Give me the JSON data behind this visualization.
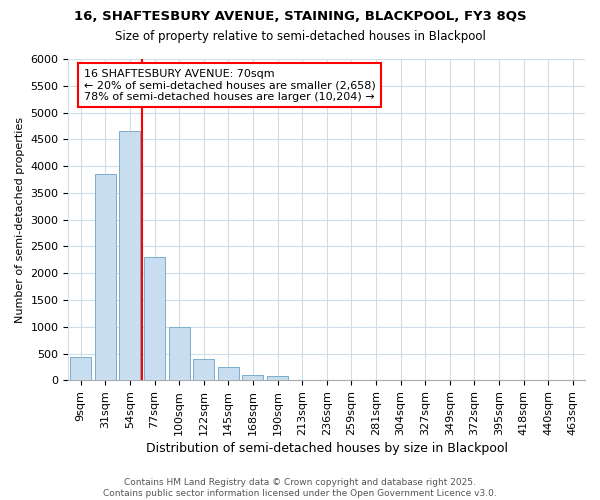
{
  "title1": "16, SHAFTESBURY AVENUE, STAINING, BLACKPOOL, FY3 8QS",
  "title2": "Size of property relative to semi-detached houses in Blackpool",
  "xlabel": "Distribution of semi-detached houses by size in Blackpool",
  "ylabel": "Number of semi-detached properties",
  "categories": [
    "9sqm",
    "31sqm",
    "54sqm",
    "77sqm",
    "100sqm",
    "122sqm",
    "145sqm",
    "168sqm",
    "190sqm",
    "213sqm",
    "236sqm",
    "259sqm",
    "281sqm",
    "304sqm",
    "327sqm",
    "349sqm",
    "372sqm",
    "395sqm",
    "418sqm",
    "440sqm",
    "463sqm"
  ],
  "values": [
    430,
    3850,
    4650,
    2300,
    1000,
    400,
    250,
    100,
    75,
    0,
    0,
    0,
    0,
    0,
    0,
    0,
    0,
    0,
    0,
    0,
    0
  ],
  "bar_color": "#c8ddf0",
  "bar_edgecolor": "#7aaecc",
  "vline_color": "red",
  "vline_pos": 2.5,
  "annotation_title": "16 SHAFTESBURY AVENUE: 70sqm",
  "annotation_line1": "← 20% of semi-detached houses are smaller (2,658)",
  "annotation_line2": "78% of semi-detached houses are larger (10,204) →",
  "annotation_box_color": "white",
  "annotation_box_edgecolor": "red",
  "ylim": [
    0,
    6000
  ],
  "yticks": [
    0,
    500,
    1000,
    1500,
    2000,
    2500,
    3000,
    3500,
    4000,
    4500,
    5000,
    5500,
    6000
  ],
  "footer_line1": "Contains HM Land Registry data © Crown copyright and database right 2025.",
  "footer_line2": "Contains public sector information licensed under the Open Government Licence v3.0.",
  "bg_color": "#ffffff",
  "grid_color": "#d0dce8"
}
